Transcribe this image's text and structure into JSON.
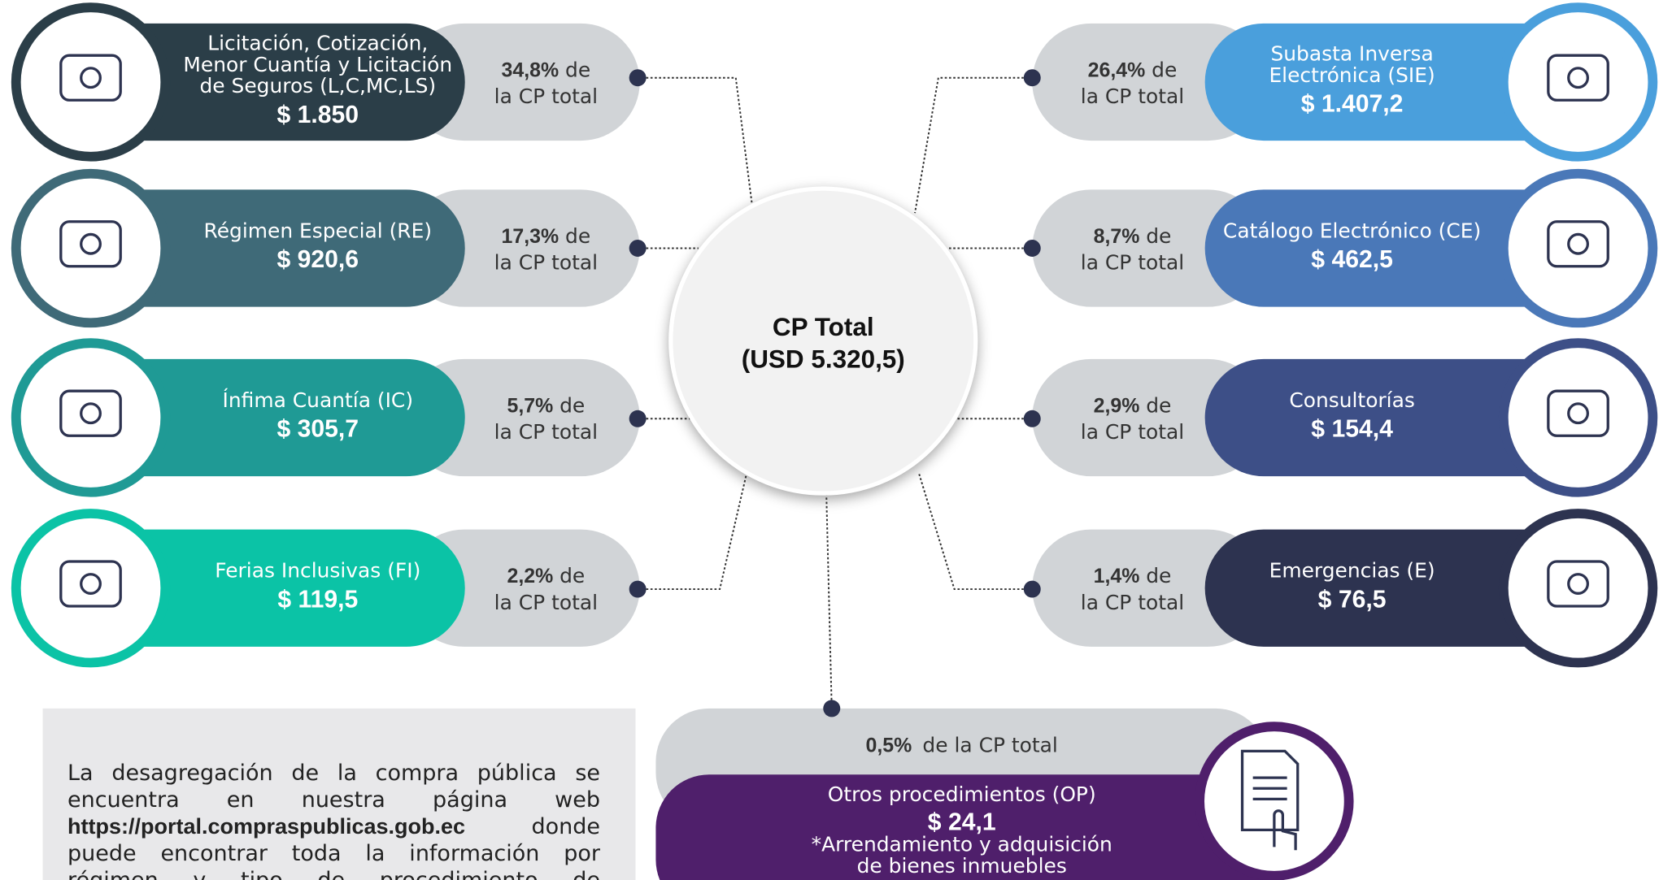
{
  "center": {
    "lines": [
      "CP Total",
      "(USD 5.320,5)"
    ]
  },
  "left": [
    {
      "title": [
        "Licitación, Cotización,",
        "Menor Cuantía y Licitación",
        "de Seguros (L,C,MC,LS)"
      ],
      "amount": "$ 1.850",
      "percent": "34,8%",
      "of": "de",
      "rest": "la CP total"
    },
    {
      "title": [
        "Régimen Especial (RE)"
      ],
      "amount": "$ 920,6",
      "percent": "17,3%",
      "of": "de",
      "rest": "la CP total"
    },
    {
      "title": [
        "Ínfima Cuantía (IC)"
      ],
      "amount": "$ 305,7",
      "percent": "5,7%",
      "of": "de",
      "rest": "la CP total"
    },
    {
      "title": [
        "Ferias Inclusivas (FI)"
      ],
      "amount": "$ 119,5",
      "percent": "2,2%",
      "of": "de",
      "rest": "la CP total"
    }
  ],
  "right": [
    {
      "title": [
        "Subasta Inversa",
        "Electrónica (SIE)"
      ],
      "amount": "$ 1.407,2",
      "percent": "26,4%",
      "of": "de",
      "rest": "la CP total"
    },
    {
      "title": [
        "Catálogo Electrónico (CE)"
      ],
      "amount": "$ 462,5",
      "percent": "8,7%",
      "of": "de",
      "rest": "la CP total"
    },
    {
      "title": [
        "Consultorías"
      ],
      "amount": "$ 154,4",
      "percent": "2,9%",
      "of": "de",
      "rest": "la CP total"
    },
    {
      "title": [
        "Emergencias (E)"
      ],
      "amount": "$ 76,5",
      "percent": "1,4%",
      "of": "de",
      "rest": "la CP total"
    }
  ],
  "other": {
    "percent": "0,5%",
    "rest": "de la CP total",
    "title": "Otros procedimientos (OP)",
    "amount": "$ 24,1",
    "note": [
      "*Arrendamiento y adquisición",
      "de bienes inmuebles"
    ]
  },
  "info": {
    "before": "La desagregación de la compra pública se encuentra en nuestra página web",
    "url": "https://portal.compraspublicas.gob.ec",
    "after": "donde puede encontrar toda la información por régimen y tipo de procedimiento de contratación."
  }
}
